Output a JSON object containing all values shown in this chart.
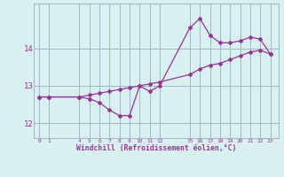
{
  "hours": [
    0,
    1,
    4,
    5,
    6,
    7,
    8,
    9,
    10,
    11,
    12,
    15,
    16,
    17,
    18,
    19,
    20,
    21,
    22,
    23
  ],
  "windchill": [
    12.7,
    12.7,
    12.7,
    12.65,
    12.55,
    12.35,
    12.2,
    12.2,
    13.0,
    12.85,
    13.0,
    14.55,
    14.8,
    14.35,
    14.15,
    14.15,
    14.2,
    14.3,
    14.25,
    13.85
  ],
  "temp": [
    12.7,
    12.7,
    12.7,
    12.75,
    12.8,
    12.85,
    12.9,
    12.95,
    13.0,
    13.05,
    13.1,
    13.3,
    13.45,
    13.55,
    13.6,
    13.7,
    13.8,
    13.9,
    13.95,
    13.85
  ],
  "bg_color": "#d8f0f0",
  "grid_color": "#a0b8c8",
  "line_color": "#993399",
  "xlabel": "Windchill (Refroidissement éolien,°C)",
  "xticks": [
    0,
    1,
    4,
    5,
    6,
    7,
    8,
    9,
    10,
    11,
    12,
    15,
    16,
    17,
    18,
    19,
    20,
    21,
    22,
    23
  ],
  "yticks": [
    12,
    13,
    14
  ],
  "ylim": [
    11.6,
    15.2
  ],
  "xlim": [
    -0.5,
    23.8
  ]
}
